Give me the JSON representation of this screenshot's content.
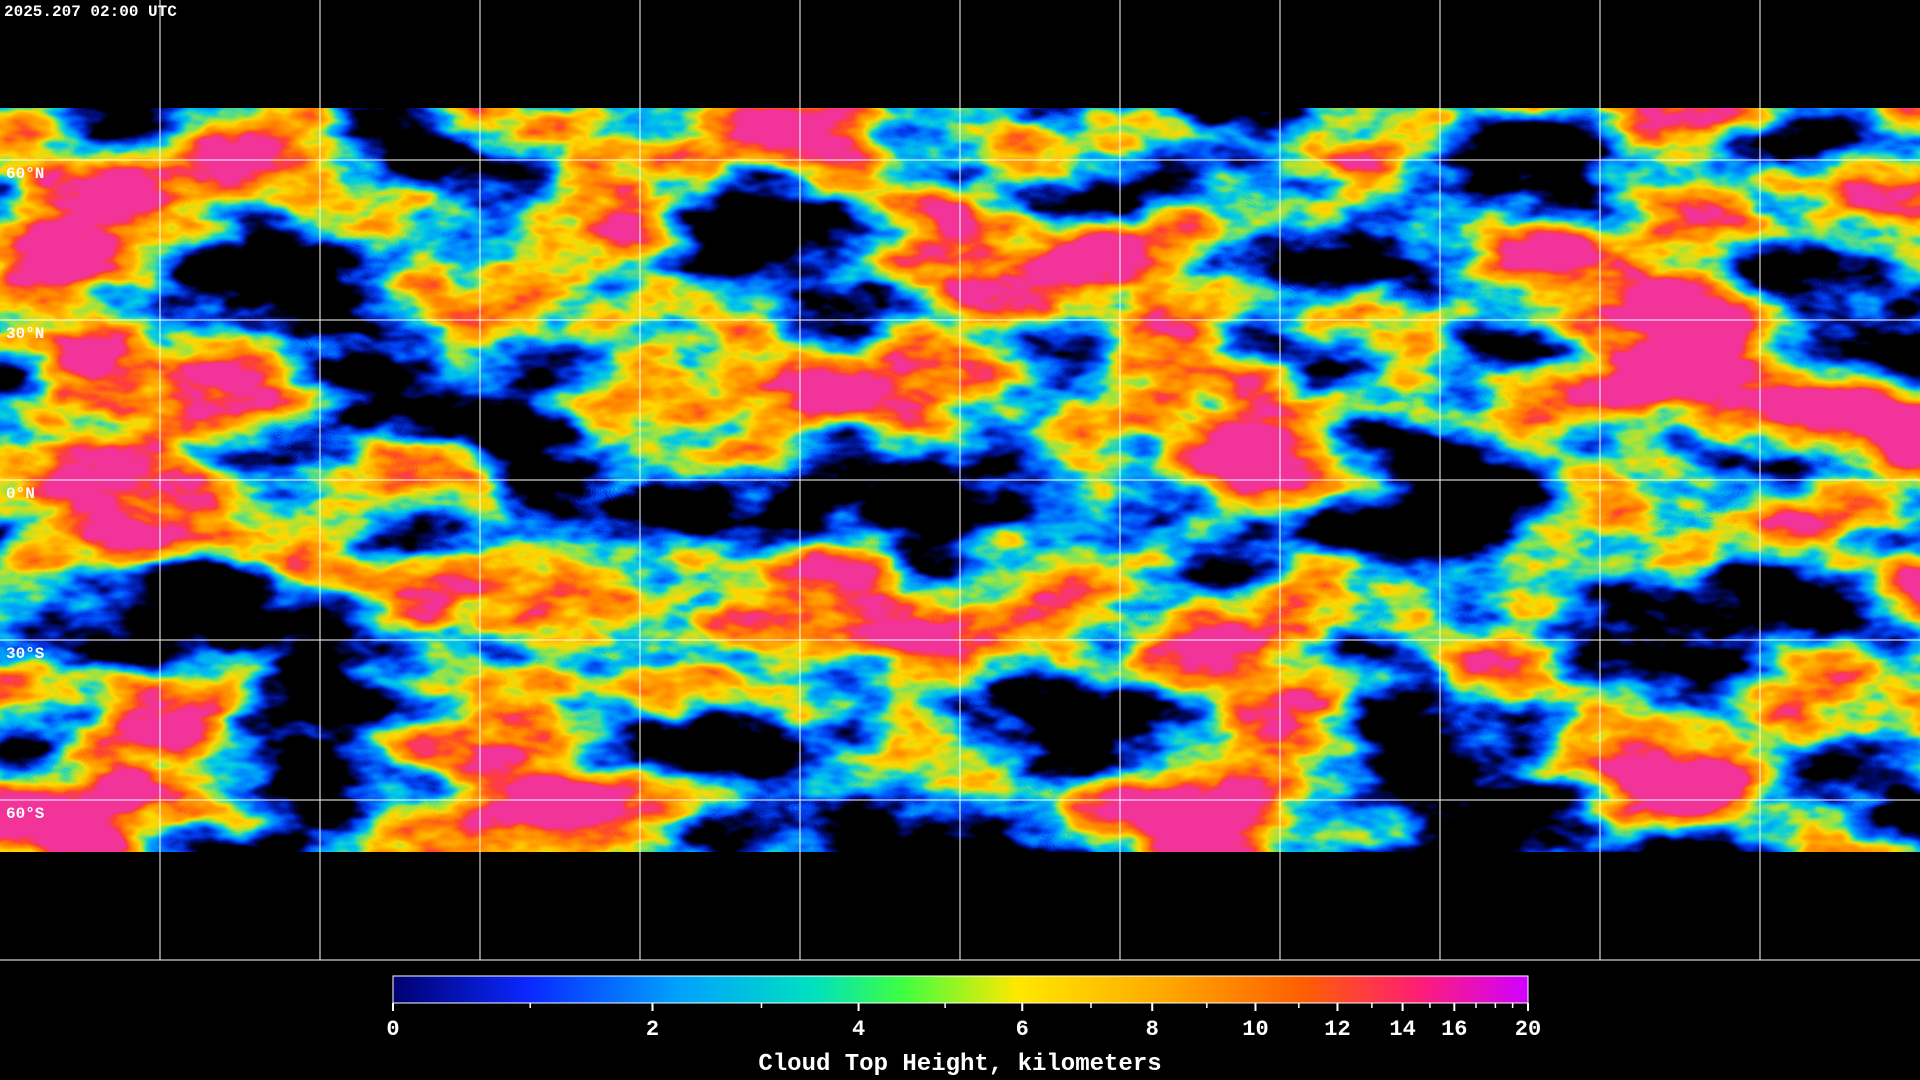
{
  "header": {
    "timestamp": "2025.207 02:00 UTC"
  },
  "map": {
    "latitude_labels": [
      {
        "value": 60,
        "label": "60°N"
      },
      {
        "value": 30,
        "label": "30°N"
      },
      {
        "value": 0,
        "label": "0°N"
      },
      {
        "value": -30,
        "label": "30°S"
      },
      {
        "value": -60,
        "label": "60°S"
      }
    ]
  },
  "colorbar": {
    "range": [
      0,
      20
    ],
    "ticks": [
      0,
      2,
      4,
      6,
      8,
      10,
      12,
      14,
      16,
      20
    ],
    "minor_ticks": [
      1,
      3,
      5,
      7,
      9,
      11,
      13,
      15,
      17,
      18,
      19
    ],
    "label": "Cloud Top Height, kilometers"
  }
}
